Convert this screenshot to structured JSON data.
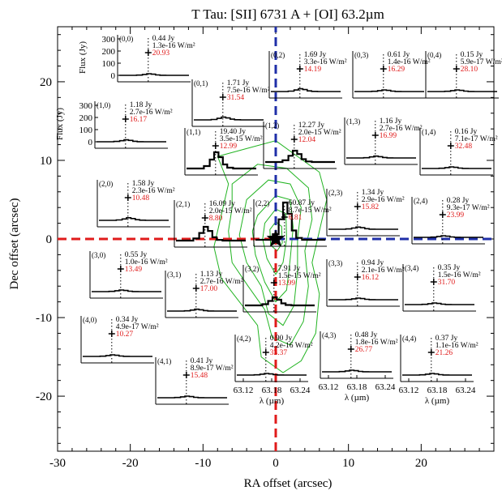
{
  "chart_data": {
    "type": "line",
    "title": "T Tau:  [SII] 6731 A + [OI] 63.2µm",
    "xlabel": "RA offset (arcsec)",
    "ylabel": "Dec offset (arcsec)",
    "xlim": [
      -30,
      30
    ],
    "ylim": [
      -27,
      27
    ],
    "x_ticks": [
      -30,
      -20,
      -10,
      0,
      10,
      20
    ],
    "y_ticks": [
      -20,
      -10,
      0,
      10,
      20
    ],
    "inset_xlabel": "λ (µm)",
    "inset_ylabel": "Flux (Jy)",
    "inset_xticks": [
      "63.12",
      "63.18",
      "63.24"
    ],
    "inset_yticks": [
      "0",
      "100",
      "200",
      "300"
    ],
    "star_position": [
      0,
      0
    ],
    "lines": [
      {
        "name": "blue-vertical",
        "color": "#1f2fa8",
        "x": [
          0,
          0
        ],
        "y": [
          0,
          27
        ]
      },
      {
        "name": "blue-horizontal",
        "color": "#1f2fa8",
        "x": [
          0,
          30
        ],
        "y": [
          0,
          0
        ]
      },
      {
        "name": "red-vertical",
        "color": "#e01b1b",
        "x": [
          0,
          0
        ],
        "y": [
          -27,
          0
        ]
      },
      {
        "name": "red-horizontal",
        "color": "#e01b1b",
        "x": [
          -30,
          0
        ],
        "y": [
          0,
          0
        ]
      }
    ],
    "spaxels": [
      {
        "id": "(0,0)",
        "jy": "0.44 Jy",
        "wm": "1.3e-16 W/m²",
        "snr": "20.93",
        "peak": 0.44
      },
      {
        "id": "(0,1)",
        "jy": "1.71 Jy",
        "wm": "7.5e-16 W/m²",
        "snr": "31.54",
        "peak": 1.71
      },
      {
        "id": "(0,2)",
        "jy": "1.69 Jy",
        "wm": "3.3e-16 W/m²",
        "snr": "14.19",
        "peak": 1.69
      },
      {
        "id": "(0,3)",
        "jy": "0.61 Jy",
        "wm": "1.4e-16 W/m²",
        "snr": "16.29",
        "peak": 0.61
      },
      {
        "id": "(0,4)",
        "jy": "0.15 Jy",
        "wm": "5.9e-17 W/m²",
        "snr": "28.10",
        "peak": 0.15
      },
      {
        "id": "(1,0)",
        "jy": "1.18 Jy",
        "wm": "2.7e-16 W/m²",
        "snr": "16.17",
        "peak": 1.18
      },
      {
        "id": "(1,1)",
        "jy": "19.40 Jy",
        "wm": "3.5e-15 W/m²",
        "snr": "12.99",
        "peak": 19.4
      },
      {
        "id": "(1,2)",
        "jy": "12.27 Jy",
        "wm": "2.0e-15 W/m²",
        "snr": "12.04",
        "peak": 12.27
      },
      {
        "id": "(1,3)",
        "jy": "1.16 Jy",
        "wm": "2.7e-16 W/m²",
        "snr": "16.99",
        "peak": 1.16
      },
      {
        "id": "(1,4)",
        "jy": "0.16 Jy",
        "wm": "7.1e-17 W/m²",
        "snr": "32.48",
        "peak": 0.16
      },
      {
        "id": "(2,0)",
        "jy": "1.58 Jy",
        "wm": "2.3e-16 W/m²",
        "snr": "10.48",
        "peak": 1.58
      },
      {
        "id": "(2,1)",
        "jy": "16.09 Jy",
        "wm": "2.0e-15 W/m²",
        "snr": "8.80",
        "peak": 16.09
      },
      {
        "id": "(2,2)",
        "jy": "60.87 Jy",
        "wm": "8.7e-15 W/m²",
        "snr": "6.81",
        "peak": 60.87
      },
      {
        "id": "(2,3)",
        "jy": "1.34 Jy",
        "wm": "2.9e-16 W/m²",
        "snr": "15.82",
        "peak": 1.34
      },
      {
        "id": "(2,4)",
        "jy": "0.28 Jy",
        "wm": "9.3e-17 W/m²",
        "snr": "23.99",
        "peak": 0.28
      },
      {
        "id": "(3,0)",
        "jy": "0.55 Jy",
        "wm": "1.0e-16 W/m²",
        "snr": "13.49",
        "peak": 0.55
      },
      {
        "id": "(3,1)",
        "jy": "1.13 Jy",
        "wm": "2.7e-16 W/m²",
        "snr": "17.00",
        "peak": 1.13
      },
      {
        "id": "(3,2)",
        "jy": "7.91 Jy",
        "wm": "1.5e-15 W/m²",
        "snr": "13.99",
        "peak": 7.91
      },
      {
        "id": "(3,3)",
        "jy": "0.94 Jy",
        "wm": "2.1e-16 W/m²",
        "snr": "16.12",
        "peak": 0.94
      },
      {
        "id": "(3,4)",
        "jy": "0.35 Jy",
        "wm": "1.5e-16 W/m²",
        "snr": "31.70",
        "peak": 0.35
      },
      {
        "id": "(4,0)",
        "jy": "0.34 Jy",
        "wm": "4.9e-17 W/m²",
        "snr": "10.27",
        "peak": 0.34
      },
      {
        "id": "(4,1)",
        "jy": "0.41 Jy",
        "wm": "8.9e-17 W/m²",
        "snr": "15.48",
        "peak": 0.41
      },
      {
        "id": "(4,2)",
        "jy": "0.90 Jy",
        "wm": "4.2e-16 W/m²",
        "snr": "33.37",
        "peak": 0.9
      },
      {
        "id": "(4,3)",
        "jy": "0.48 Jy",
        "wm": "1.8e-16 W/m²",
        "snr": "26.77",
        "peak": 0.48
      },
      {
        "id": "(4,4)",
        "jy": "0.37 Jy",
        "wm": "1.1e-16 W/m²",
        "snr": "21.26",
        "peak": 0.37
      }
    ]
  },
  "colors": {
    "blue": "#1f2fa8",
    "red": "#e01b1b",
    "contour": "#22b422",
    "axes": "#000000"
  }
}
